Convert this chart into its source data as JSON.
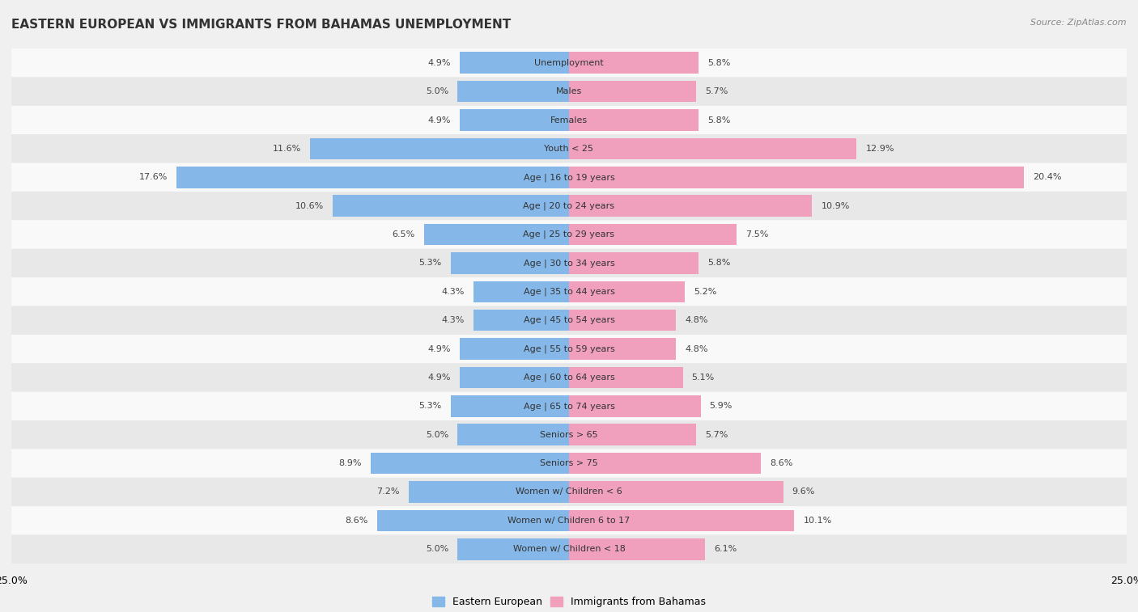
{
  "title": "EASTERN EUROPEAN VS IMMIGRANTS FROM BAHAMAS UNEMPLOYMENT",
  "source": "Source: ZipAtlas.com",
  "categories": [
    "Unemployment",
    "Males",
    "Females",
    "Youth < 25",
    "Age | 16 to 19 years",
    "Age | 20 to 24 years",
    "Age | 25 to 29 years",
    "Age | 30 to 34 years",
    "Age | 35 to 44 years",
    "Age | 45 to 54 years",
    "Age | 55 to 59 years",
    "Age | 60 to 64 years",
    "Age | 65 to 74 years",
    "Seniors > 65",
    "Seniors > 75",
    "Women w/ Children < 6",
    "Women w/ Children 6 to 17",
    "Women w/ Children < 18"
  ],
  "eastern_european": [
    4.9,
    5.0,
    4.9,
    11.6,
    17.6,
    10.6,
    6.5,
    5.3,
    4.3,
    4.3,
    4.9,
    4.9,
    5.3,
    5.0,
    8.9,
    7.2,
    8.6,
    5.0
  ],
  "immigrants_bahamas": [
    5.8,
    5.7,
    5.8,
    12.9,
    20.4,
    10.9,
    7.5,
    5.8,
    5.2,
    4.8,
    4.8,
    5.1,
    5.9,
    5.7,
    8.6,
    9.6,
    10.1,
    6.1
  ],
  "color_eastern": "#85B8E8",
  "color_bahamas": "#F0A0BC",
  "axis_limit": 25.0,
  "background_color": "#f0f0f0",
  "row_color_even": "#f9f9f9",
  "row_color_odd": "#e8e8e8",
  "title_fontsize": 11,
  "source_fontsize": 8,
  "label_fontsize": 8,
  "value_fontsize": 8,
  "legend_fontsize": 9
}
